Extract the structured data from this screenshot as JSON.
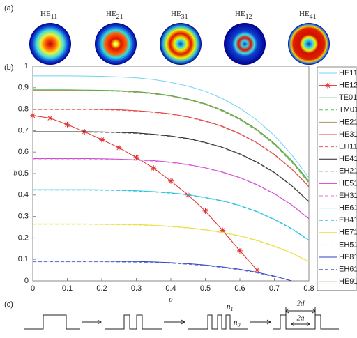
{
  "panels": [
    "(a)",
    "(b)",
    "(c)"
  ],
  "mode_images": [
    {
      "base": "HE",
      "sub": "11"
    },
    {
      "base": "HE",
      "sub": "21"
    },
    {
      "base": "HE",
      "sub": "31"
    },
    {
      "base": "HE",
      "sub": "12"
    },
    {
      "base": "HE",
      "sub": "41"
    }
  ],
  "diagram": {
    "n1": {
      "base": "n",
      "sub": "1"
    },
    "n0": {
      "base": "n",
      "sub": "0"
    },
    "d": "2d",
    "a": "2a"
  },
  "chart_data": {
    "type": "line",
    "xlabel": "ρ",
    "ylabel": "b",
    "x": [
      0,
      0.05,
      0.1,
      0.15,
      0.2,
      0.25,
      0.3,
      0.35,
      0.4,
      0.45,
      0.5,
      0.55,
      0.6,
      0.65,
      0.7,
      0.75,
      0.8
    ],
    "xlim": [
      0,
      0.8
    ],
    "xticks": [
      0,
      0.1,
      0.2,
      0.3,
      0.4,
      0.5,
      0.6,
      0.7,
      0.8
    ],
    "ylim": [
      0,
      1
    ],
    "yticks": [
      0,
      0.1,
      0.2,
      0.3,
      0.4,
      0.5,
      0.6,
      0.7,
      0.8,
      0.9,
      1
    ],
    "legend": "right",
    "series": [
      {
        "name": "HE11",
        "color": "#70d4f4",
        "dash": false,
        "values": [
          0.955,
          0.955,
          0.955,
          0.954,
          0.953,
          0.95,
          0.946,
          0.938,
          0.925,
          0.907,
          0.883,
          0.849,
          0.805,
          0.748,
          0.677,
          0.588,
          0.48
        ]
      },
      {
        "name": "HE12",
        "color": "#e03030",
        "dash": false,
        "marker": "star",
        "values": [
          0.77,
          0.758,
          0.728,
          0.695,
          0.658,
          0.62,
          0.575,
          0.525,
          0.465,
          0.4,
          0.325,
          0.235,
          0.14,
          0.05,
          null,
          null,
          null
        ]
      },
      {
        "name": "TE01",
        "color": "#30b030",
        "dash": false,
        "values": [
          0.89,
          0.89,
          0.89,
          0.889,
          0.888,
          0.886,
          0.882,
          0.874,
          0.863,
          0.847,
          0.825,
          0.795,
          0.756,
          0.705,
          0.641,
          0.562,
          0.465
        ]
      },
      {
        "name": "TM01",
        "color": "#50c850",
        "dash": true,
        "values": [
          0.887,
          0.887,
          0.887,
          0.886,
          0.885,
          0.883,
          0.878,
          0.871,
          0.86,
          0.844,
          0.821,
          0.79,
          0.75,
          0.699,
          0.634,
          0.553,
          0.455
        ]
      },
      {
        "name": "HE21",
        "color": "#a89a60",
        "dash": false,
        "values": [
          0.888,
          0.888,
          0.888,
          0.887,
          0.886,
          0.884,
          0.88,
          0.872,
          0.861,
          0.845,
          0.823,
          0.793,
          0.753,
          0.702,
          0.637,
          0.557,
          0.46
        ]
      },
      {
        "name": "HE31",
        "color": "#e04040",
        "dash": false,
        "values": [
          0.8,
          0.8,
          0.8,
          0.8,
          0.799,
          0.797,
          0.793,
          0.787,
          0.778,
          0.764,
          0.745,
          0.72,
          0.686,
          0.643,
          0.589,
          0.522,
          0.44
        ]
      },
      {
        "name": "EH11",
        "color": "#e06060",
        "dash": true,
        "values": [
          0.798,
          0.798,
          0.798,
          0.798,
          0.797,
          0.795,
          0.791,
          0.785,
          0.776,
          0.762,
          0.743,
          0.718,
          0.684,
          0.641,
          0.587,
          0.52,
          0.438
        ]
      },
      {
        "name": "HE41",
        "color": "#222222",
        "dash": false,
        "values": [
          0.695,
          0.695,
          0.695,
          0.695,
          0.694,
          0.692,
          0.689,
          0.683,
          0.675,
          0.663,
          0.645,
          0.622,
          0.592,
          0.553,
          0.505,
          0.444,
          0.37
        ]
      },
      {
        "name": "EH21",
        "color": "#555555",
        "dash": true,
        "values": [
          0.693,
          0.693,
          0.693,
          0.693,
          0.692,
          0.69,
          0.687,
          0.681,
          0.673,
          0.661,
          0.643,
          0.62,
          0.59,
          0.551,
          0.503,
          0.442,
          0.368
        ]
      },
      {
        "name": "HE51",
        "color": "#d040d0",
        "dash": false,
        "values": [
          0.57,
          0.57,
          0.57,
          0.57,
          0.569,
          0.567,
          0.564,
          0.56,
          0.553,
          0.542,
          0.527,
          0.507,
          0.481,
          0.448,
          0.406,
          0.354,
          0.29
        ]
      },
      {
        "name": "EH31",
        "color": "#e070e0",
        "dash": true,
        "values": [
          0.568,
          0.568,
          0.568,
          0.568,
          0.567,
          0.565,
          0.562,
          0.558,
          0.551,
          0.54,
          0.525,
          0.505,
          0.479,
          0.446,
          0.404,
          0.352,
          0.288
        ]
      },
      {
        "name": "HE61",
        "color": "#30d0e0",
        "dash": false,
        "values": [
          0.425,
          0.425,
          0.425,
          0.425,
          0.424,
          0.423,
          0.42,
          0.416,
          0.41,
          0.402,
          0.389,
          0.373,
          0.351,
          0.323,
          0.287,
          0.244,
          0.19
        ]
      },
      {
        "name": "EH41",
        "color": "#40b8e0",
        "dash": true,
        "values": [
          0.423,
          0.423,
          0.423,
          0.423,
          0.422,
          0.421,
          0.418,
          0.414,
          0.408,
          0.4,
          0.387,
          0.371,
          0.349,
          0.321,
          0.285,
          0.242,
          0.188
        ]
      },
      {
        "name": "HE71",
        "color": "#e8e030",
        "dash": false,
        "values": [
          0.265,
          0.265,
          0.265,
          0.265,
          0.264,
          0.263,
          0.262,
          0.259,
          0.254,
          0.248,
          0.238,
          0.226,
          0.21,
          0.189,
          0.162,
          0.13,
          0.09
        ]
      },
      {
        "name": "EH51",
        "color": "#f0e060",
        "dash": true,
        "values": [
          0.263,
          0.263,
          0.263,
          0.263,
          0.262,
          0.261,
          0.26,
          0.257,
          0.252,
          0.246,
          0.236,
          0.224,
          0.208,
          0.187,
          0.16,
          0.128,
          0.088
        ]
      },
      {
        "name": "HE81",
        "color": "#3040c0",
        "dash": false,
        "values": [
          0.092,
          0.092,
          0.092,
          0.092,
          0.092,
          0.091,
          0.09,
          0.088,
          0.085,
          0.08,
          0.074,
          0.065,
          0.054,
          0.04,
          0.022,
          0.0,
          null
        ]
      },
      {
        "name": "EH61",
        "color": "#6070d0",
        "dash": true,
        "values": [
          0.089,
          0.089,
          0.089,
          0.089,
          0.089,
          0.088,
          0.087,
          0.085,
          0.082,
          0.077,
          0.071,
          0.062,
          0.051,
          0.037,
          0.019,
          null,
          null
        ]
      },
      {
        "name": "HE91",
        "color": "#b09060",
        "dash": false,
        "values": [
          null,
          null,
          null,
          null,
          null,
          null,
          null,
          null,
          null,
          null,
          null,
          null,
          null,
          null,
          null,
          null,
          null
        ]
      }
    ]
  }
}
